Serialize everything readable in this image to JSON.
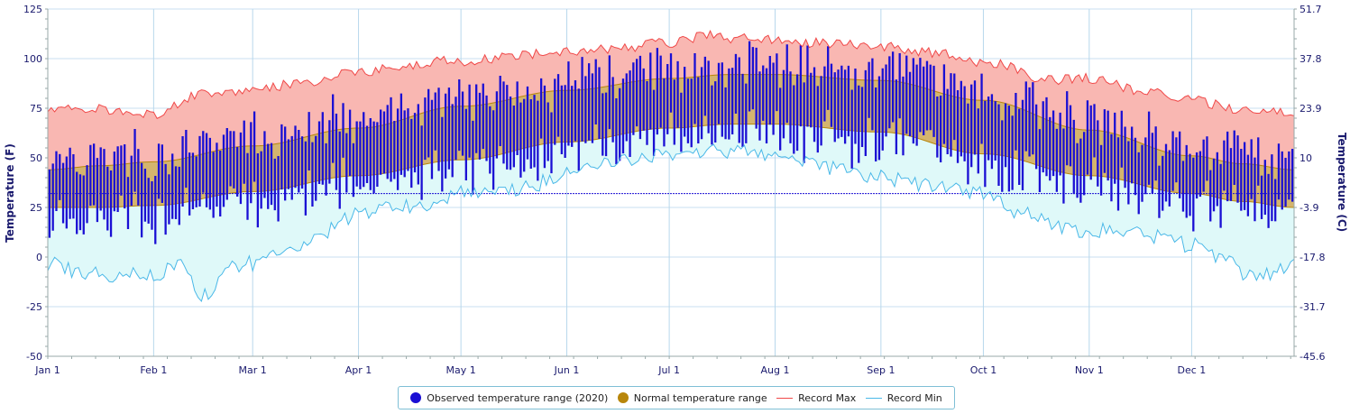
{
  "chart_data": {
    "type": "area",
    "x_axis": {
      "categories": [
        "Jan 1",
        "Feb 1",
        "Mar 1",
        "Apr 1",
        "May 1",
        "Jun 1",
        "Jul 1",
        "Aug 1",
        "Sep 1",
        "Oct 1",
        "Nov 1",
        "Dec 1"
      ],
      "day_of_year": [
        0,
        31,
        60,
        91,
        121,
        152,
        182,
        213,
        244,
        274,
        305,
        335
      ],
      "range": [
        0,
        365
      ]
    },
    "y_axis_left": {
      "title": "Temperature (F)",
      "ticks": [
        "125",
        "100",
        "75",
        "50",
        "25",
        "0",
        "-25",
        "-50"
      ],
      "tick_values": [
        125,
        100,
        75,
        50,
        25,
        0,
        -25,
        -50
      ],
      "range": [
        -50,
        125
      ]
    },
    "y_axis_right": {
      "title": "Temperature (C)",
      "ticks": [
        "51.7",
        "37.8",
        "23.9",
        "10",
        "-3.9",
        "-17.8",
        "-31.7",
        "-45.6"
      ],
      "tick_values_f": [
        125,
        100,
        75,
        50,
        25,
        0,
        -25,
        -50
      ]
    },
    "freezing_line_f": 32,
    "series": [
      {
        "name": "Observed temperature range (2020)",
        "color": "#1a0fd4",
        "style": "vertical-range-bars"
      },
      {
        "name": "Normal temperature range",
        "color": "#b8860b",
        "fill": "#d4b46e",
        "low_anchor_days": [
          0,
          15,
          31,
          60,
          91,
          121,
          152,
          182,
          200,
          213,
          244,
          274,
          305,
          335,
          350,
          365
        ],
        "low_f": [
          25,
          25,
          26,
          33,
          41,
          49,
          58,
          65,
          67,
          67,
          63,
          52,
          41,
          32,
          28,
          25
        ],
        "high_anchor_days": [
          0,
          15,
          31,
          60,
          91,
          121,
          152,
          182,
          200,
          213,
          244,
          274,
          305,
          335,
          350,
          365
        ],
        "high_f": [
          44,
          46,
          48,
          56,
          65,
          76,
          84,
          90,
          92,
          92,
          89,
          79,
          64,
          51,
          47,
          44
        ]
      },
      {
        "name": "Record Max",
        "color": "#f04848",
        "fill": "#f9b7b2",
        "anchor_days": [
          0,
          10,
          31,
          45,
          60,
          75,
          91,
          100,
          115,
          121,
          135,
          152,
          165,
          182,
          195,
          200,
          213,
          225,
          244,
          260,
          274,
          280,
          290,
          305,
          320,
          335,
          350,
          365
        ],
        "values_f": [
          74,
          75,
          72,
          82,
          84,
          88,
          93,
          95,
          99,
          98,
          101,
          104,
          105,
          108,
          112,
          110,
          110,
          108,
          106,
          103,
          98,
          97,
          89,
          90,
          84,
          79,
          74,
          73
        ]
      },
      {
        "name": "Record Min",
        "color": "#4ab8e8",
        "fill": "#dff9f9",
        "anchor_days": [
          0,
          10,
          20,
          31,
          40,
          45,
          55,
          60,
          70,
          80,
          91,
          100,
          110,
          121,
          130,
          140,
          152,
          160,
          170,
          182,
          195,
          205,
          213,
          220,
          230,
          244,
          255,
          265,
          274,
          285,
          295,
          305,
          315,
          325,
          335,
          345,
          352,
          358,
          365
        ],
        "values_f": [
          -3,
          -8,
          -10,
          -8,
          -5,
          -20,
          -5,
          -3,
          3,
          12,
          22,
          25,
          26,
          32,
          31,
          35,
          42,
          46,
          49,
          52,
          53,
          53,
          50,
          48,
          45,
          40,
          37,
          34,
          32,
          22,
          16,
          13,
          14,
          10,
          6,
          -2,
          -10,
          -8,
          -5
        ]
      }
    ],
    "grid": true,
    "legend_position": "bottom-center"
  },
  "legend": {
    "items": [
      {
        "label": "Observed temperature range (2020)",
        "color": "#1a0fd4"
      },
      {
        "label": "Normal temperature range",
        "color": "#b8860b"
      },
      {
        "label": "Record Max",
        "color": "#f04848"
      },
      {
        "label": "Record Min",
        "color": "#4ab8e8"
      }
    ]
  }
}
